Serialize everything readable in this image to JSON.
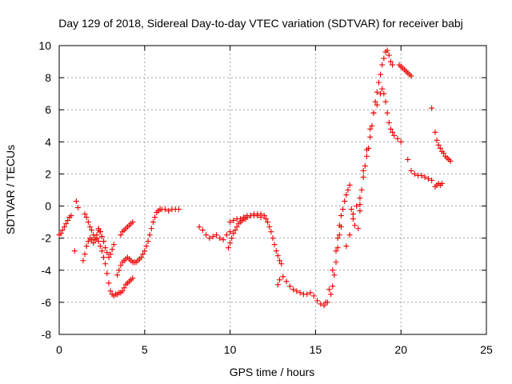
{
  "chart_data": {
    "type": "scatter",
    "title": "Day 129 of 2018, Sidereal Day-to-day VTEC variation (SDTVAR) for receiver babj",
    "xlabel": "GPS time / hours",
    "ylabel": "SDTVAR / TECUs",
    "xlim": [
      0,
      25
    ],
    "ylim": [
      -8,
      10
    ],
    "xticks": [
      0,
      5,
      10,
      15,
      20,
      25
    ],
    "yticks": [
      -8,
      -6,
      -4,
      -2,
      0,
      2,
      4,
      6,
      8,
      10
    ],
    "xtick_labels": [
      "0",
      "5",
      "10",
      "15",
      "20",
      "25"
    ],
    "ytick_labels": [
      "-8",
      "-6",
      "-4",
      "-2",
      "0",
      "2",
      "4",
      "6",
      "8",
      "10"
    ],
    "grid": true,
    "marker": "+",
    "color": "#ee0000",
    "series": [
      {
        "name": "seg1",
        "x": [
          0.0,
          0.1,
          0.2,
          0.3,
          0.4,
          0.5,
          0.6,
          0.7
        ],
        "y": [
          -1.8,
          -1.7,
          -1.5,
          -1.3,
          -1.1,
          -0.9,
          -0.7,
          -0.6
        ]
      },
      {
        "name": "seg2",
        "x": [
          0.9,
          1.0,
          1.1
        ],
        "y": [
          -2.8,
          0.3,
          -0.1
        ]
      },
      {
        "name": "seg3",
        "x": [
          1.4,
          1.5,
          1.6,
          1.7,
          1.8,
          1.9,
          2.0,
          2.1,
          2.2,
          2.3,
          2.4,
          2.5,
          2.6,
          2.7,
          2.8,
          2.9,
          3.0,
          3.1,
          3.2,
          3.3,
          3.4,
          3.5,
          3.6,
          3.7,
          3.8,
          3.9,
          4.0,
          4.1,
          4.2,
          4.3
        ],
        "y": [
          -3.4,
          -3.0,
          -2.5,
          -2.2,
          -2.0,
          -2.1,
          -2.3,
          -2.1,
          -2.0,
          -2.2,
          -2.5,
          -2.8,
          -3.2,
          -3.6,
          -4.2,
          -4.8,
          -5.3,
          -5.5,
          -5.6,
          -5.5,
          -5.5,
          -5.4,
          -5.4,
          -5.3,
          -5.1,
          -4.9,
          -4.8,
          -4.7,
          -4.6,
          -4.5
        ]
      },
      {
        "name": "seg4",
        "x": [
          1.5,
          1.6,
          1.7,
          1.8,
          1.9,
          2.0,
          2.1,
          2.2,
          2.3,
          2.4,
          2.5,
          2.6
        ],
        "y": [
          -0.5,
          -0.7,
          -1.0,
          -1.3,
          -1.5,
          -1.8,
          -2.0,
          -1.8,
          -1.5,
          -1.6,
          -1.9,
          -2.2
        ]
      },
      {
        "name": "seg5",
        "x": [
          2.3,
          2.4,
          2.5,
          2.6,
          2.7,
          2.8,
          2.9,
          3.0,
          3.1,
          3.2
        ],
        "y": [
          -1.4,
          -1.6,
          -1.9,
          -2.2,
          -2.6,
          -2.9,
          -3.2,
          -3.0,
          -2.7,
          -2.4
        ]
      },
      {
        "name": "seg6",
        "x": [
          3.4,
          3.5,
          3.6,
          3.7,
          3.8,
          3.9,
          4.0,
          4.1,
          4.2,
          4.3,
          4.4
        ],
        "y": [
          -4.3,
          -4.0,
          -3.7,
          -3.5,
          -3.4,
          -3.3,
          -3.2,
          -3.3,
          -3.4,
          -3.5,
          -3.5
        ]
      },
      {
        "name": "seg7",
        "x": [
          3.6,
          3.7,
          3.8,
          3.9,
          4.0,
          4.1,
          4.2,
          4.3
        ],
        "y": [
          -1.8,
          -1.6,
          -1.5,
          -1.4,
          -1.3,
          -1.2,
          -1.1,
          -1.0
        ]
      },
      {
        "name": "seg8",
        "x": [
          4.5,
          4.6,
          4.7,
          4.8,
          4.9,
          5.0,
          5.1,
          5.2,
          5.3,
          5.4,
          5.5,
          5.6,
          5.7,
          5.8,
          5.9,
          6.0,
          6.2,
          6.4,
          6.6,
          6.8,
          7.0
        ],
        "y": [
          -3.5,
          -3.4,
          -3.3,
          -3.2,
          -3.0,
          -2.8,
          -2.5,
          -2.2,
          -1.8,
          -1.4,
          -1.0,
          -0.7,
          -0.4,
          -0.3,
          -0.2,
          -0.2,
          -0.2,
          -0.3,
          -0.2,
          -0.2,
          -0.2
        ]
      },
      {
        "name": "seg9",
        "x": [
          8.2,
          8.4,
          8.6,
          8.8,
          9.0,
          9.2,
          9.4,
          9.6,
          9.8,
          10.0
        ],
        "y": [
          -1.3,
          -1.5,
          -1.8,
          -2.0,
          -1.9,
          -1.8,
          -2.0,
          -2.1,
          -1.8,
          -1.6
        ]
      },
      {
        "name": "seg10",
        "x": [
          9.9,
          10.0,
          10.1,
          10.2,
          10.3,
          10.4,
          10.5,
          10.6,
          10.7,
          10.8,
          10.9,
          11.0,
          11.2,
          11.4,
          11.6,
          11.8,
          12.0,
          12.1,
          12.2,
          12.3,
          12.4,
          12.5,
          12.6,
          12.7,
          12.8,
          12.9,
          13.0
        ],
        "y": [
          -2.6,
          -2.3,
          -2.0,
          -1.7,
          -1.5,
          -1.3,
          -1.1,
          -1.0,
          -0.9,
          -0.8,
          -0.8,
          -0.7,
          -0.6,
          -0.6,
          -0.5,
          -0.5,
          -0.6,
          -0.8,
          -1.0,
          -1.3,
          -1.6,
          -2.0,
          -2.4,
          -2.8,
          -3.1,
          -3.4,
          -3.6
        ]
      },
      {
        "name": "seg11",
        "x": [
          10.0,
          10.2,
          10.4,
          10.6,
          10.8,
          11.0,
          11.2,
          11.4,
          11.6,
          11.8
        ],
        "y": [
          -1.0,
          -0.9,
          -0.8,
          -0.8,
          -0.7,
          -0.6,
          -0.6,
          -0.5,
          -0.6,
          -0.7
        ]
      },
      {
        "name": "seg12",
        "x": [
          12.8,
          12.9,
          13.1,
          13.3,
          13.5,
          13.7,
          13.9,
          14.1,
          14.3,
          14.5,
          14.7,
          14.9,
          15.1,
          15.3,
          15.5,
          15.7,
          15.9,
          16.0,
          16.1,
          16.2,
          16.3,
          16.4,
          16.5
        ],
        "y": [
          -4.9,
          -4.6,
          -4.4,
          -4.7,
          -5.0,
          -5.2,
          -5.3,
          -5.4,
          -5.5,
          -5.5,
          -5.4,
          -5.6,
          -5.9,
          -6.1,
          -6.2,
          -6.0,
          -5.5,
          -5.0,
          -4.3,
          -3.5,
          -2.6,
          -1.8,
          -1.3
        ]
      },
      {
        "name": "seg13",
        "x": [
          15.6,
          15.8,
          16.0,
          16.2,
          16.3,
          16.4,
          16.5,
          16.6,
          16.7,
          16.8,
          16.9,
          17.0,
          17.1,
          17.2,
          17.3,
          17.5,
          17.6
        ],
        "y": [
          -6.0,
          -5.2,
          -4.0,
          -2.8,
          -2.0,
          -1.2,
          -0.6,
          -0.2,
          0.3,
          0.7,
          1.0,
          1.3,
          -0.2,
          -0.5,
          -1.2,
          -1.4,
          -0.3
        ]
      },
      {
        "name": "seg14",
        "x": [
          16.8,
          17.0,
          17.2,
          17.4,
          17.6,
          17.7,
          17.8,
          17.9,
          18.0,
          18.1,
          18.2,
          18.3,
          18.4,
          18.5,
          18.6,
          18.7,
          18.8,
          18.9,
          19.0,
          19.1,
          19.2,
          19.3,
          19.4,
          19.5
        ],
        "y": [
          -2.5,
          -1.8,
          -0.8,
          0.0,
          0.5,
          1.0,
          1.8,
          2.5,
          3.1,
          3.6,
          4.3,
          5.0,
          5.8,
          6.5,
          7.1,
          7.7,
          8.2,
          8.8,
          9.2,
          9.6,
          9.7,
          9.4,
          9.0,
          8.8
        ]
      },
      {
        "name": "seg15",
        "x": [
          17.6,
          17.8,
          18.0,
          18.2,
          18.4,
          18.6,
          18.8,
          18.9,
          19.0,
          19.1,
          19.2,
          19.3,
          19.4,
          19.5,
          19.6,
          19.8,
          20.0
        ],
        "y": [
          0.1,
          2.2,
          3.5,
          4.8,
          5.8,
          6.3,
          7.0,
          7.3,
          7.0,
          6.5,
          5.8,
          5.2,
          4.8,
          4.6,
          4.4,
          4.2,
          4.0
        ]
      },
      {
        "name": "seg16",
        "x": [
          19.9,
          20.0,
          20.1,
          20.2,
          20.3,
          20.4,
          20.5,
          20.6
        ],
        "y": [
          8.8,
          8.7,
          8.6,
          8.5,
          8.4,
          8.3,
          8.2,
          8.1
        ]
      },
      {
        "name": "seg17",
        "x": [
          20.4,
          20.6,
          20.8,
          21.0,
          21.2,
          21.4,
          21.6,
          21.8,
          22.0,
          22.1,
          22.2,
          22.3,
          22.4
        ],
        "y": [
          2.9,
          2.2,
          2.0,
          1.9,
          1.9,
          1.8,
          1.7,
          1.6,
          1.2,
          1.3,
          1.4,
          1.3,
          1.4
        ]
      },
      {
        "name": "seg18",
        "x": [
          21.8
        ],
        "y": [
          6.1
        ]
      },
      {
        "name": "seg19",
        "x": [
          22.0,
          22.1,
          22.2,
          22.3,
          22.4,
          22.5,
          22.6,
          22.7,
          22.8,
          22.9
        ],
        "y": [
          4.6,
          4.1,
          3.8,
          3.6,
          3.4,
          3.3,
          3.1,
          3.0,
          2.9,
          2.8
        ]
      }
    ]
  }
}
